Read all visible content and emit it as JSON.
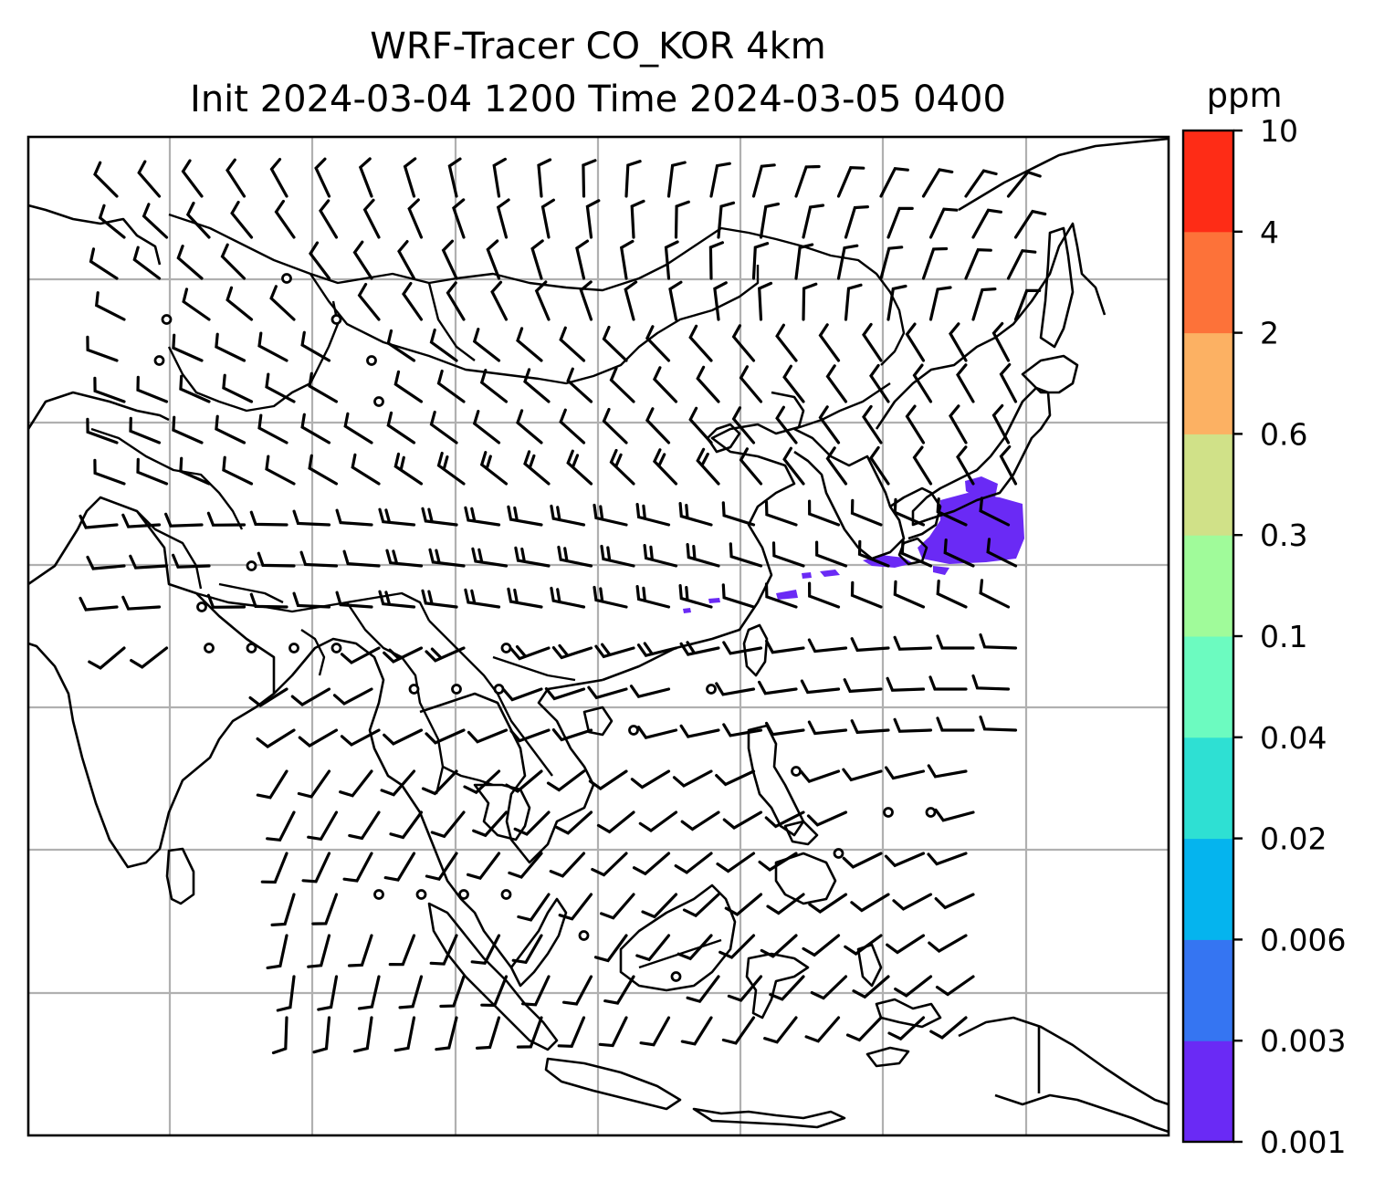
{
  "title": {
    "line1": "WRF-Tracer CO_KOR 4km",
    "line2": "Init 2024-03-04 1200 Time 2024-03-05 0400"
  },
  "colorbar": {
    "unit": "ppm",
    "levels": [
      "0.001",
      "0.003",
      "0.006",
      "0.02",
      "0.04",
      "0.1",
      "0.3",
      "0.6",
      "2",
      "4",
      "10"
    ],
    "colors": [
      "#6a2af5",
      "#3575f2",
      "#05b4ee",
      "#2ee0d3",
      "#6cfbc0",
      "#a0fb9a",
      "#d0e188",
      "#fcb163",
      "#fd7239",
      "#fe2c16"
    ]
  },
  "map": {
    "projection": "lat-lon",
    "gridlines": true,
    "wind_barbs": true,
    "plume_region": "Korea and western Japan / East Sea",
    "plume_level": "0.001-0.003 ppm"
  }
}
